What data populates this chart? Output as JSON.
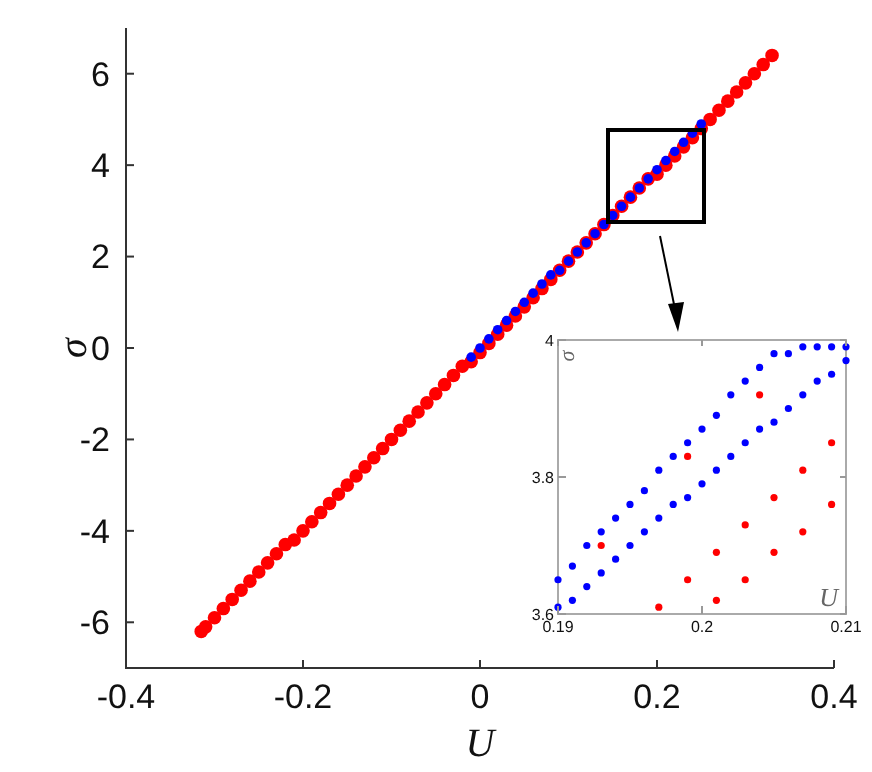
{
  "chart_data": [
    {
      "type": "scatter",
      "xlabel": "U",
      "ylabel": "σ",
      "xlim": [
        -0.4,
        0.4
      ],
      "ylim": [
        -7,
        7
      ],
      "xticks": [
        -0.4,
        -0.2,
        0,
        0.2,
        0.4
      ],
      "yticks": [
        -6,
        -4,
        -2,
        0,
        2,
        4,
        6
      ],
      "marker": "circle",
      "series": [
        {
          "color": "#ff0000",
          "x": [
            -0.315,
            -0.31,
            -0.3,
            -0.29,
            -0.28,
            -0.27,
            -0.26,
            -0.25,
            -0.24,
            -0.23,
            -0.22,
            -0.21,
            -0.2,
            -0.19,
            -0.18,
            -0.17,
            -0.16,
            -0.15,
            -0.14,
            -0.13,
            -0.12,
            -0.11,
            -0.1,
            -0.09,
            -0.08,
            -0.07,
            -0.06,
            -0.05,
            -0.04,
            -0.03,
            -0.02,
            -0.01,
            0,
            0.01,
            0.02,
            0.03,
            0.04,
            0.05,
            0.06,
            0.07,
            0.08,
            0.09,
            0.1,
            0.11,
            0.12,
            0.13,
            0.14,
            0.15,
            0.16,
            0.17,
            0.18,
            0.19,
            0.2,
            0.21,
            0.22,
            0.23,
            0.24,
            0.25,
            0.26,
            0.27,
            0.28,
            0.29,
            0.3,
            0.31,
            0.32,
            0.33
          ],
          "values": [
            -6.2,
            -6.1,
            -5.9,
            -5.7,
            -5.5,
            -5.3,
            -5.1,
            -4.9,
            -4.7,
            -4.5,
            -4.3,
            -4.2,
            -4.0,
            -3.8,
            -3.6,
            -3.4,
            -3.2,
            -3.0,
            -2.8,
            -2.6,
            -2.4,
            -2.2,
            -2.0,
            -1.8,
            -1.6,
            -1.4,
            -1.2,
            -1.0,
            -0.8,
            -0.6,
            -0.4,
            -0.3,
            -0.1,
            0.1,
            0.3,
            0.5,
            0.7,
            0.9,
            1.1,
            1.3,
            1.5,
            1.7,
            1.9,
            2.1,
            2.3,
            2.5,
            2.7,
            2.9,
            3.1,
            3.3,
            3.5,
            3.7,
            3.8,
            4.0,
            4.2,
            4.4,
            4.6,
            4.8,
            5.0,
            5.2,
            5.4,
            5.6,
            5.8,
            6.0,
            6.2,
            6.4
          ]
        },
        {
          "color": "#0000ff",
          "x": [
            -0.01,
            0,
            0.01,
            0.02,
            0.03,
            0.04,
            0.05,
            0.06,
            0.07,
            0.08,
            0.09,
            0.1,
            0.11,
            0.12,
            0.13,
            0.14,
            0.15,
            0.16,
            0.17,
            0.18,
            0.19,
            0.2,
            0.21,
            0.22,
            0.23,
            0.24,
            0.25
          ],
          "values": [
            -0.2,
            0,
            0.2,
            0.4,
            0.6,
            0.8,
            1.0,
            1.2,
            1.4,
            1.6,
            1.7,
            1.9,
            2.1,
            2.3,
            2.5,
            2.7,
            2.9,
            3.1,
            3.3,
            3.5,
            3.7,
            3.9,
            4.1,
            4.3,
            4.5,
            4.7,
            4.9
          ]
        }
      ]
    },
    {
      "type": "scatter",
      "xlabel": "U",
      "ylabel": "σ",
      "xlim": [
        0.19,
        0.21
      ],
      "ylim": [
        3.6,
        4
      ],
      "xticks": [
        0.19,
        0.2,
        0.21
      ],
      "yticks": [
        3.6,
        3.8,
        4
      ],
      "marker": "circle",
      "series": [
        {
          "color": "#ff0000",
          "x": [
            0.197,
            0.199,
            0.201,
            0.203,
            0.205,
            0.207,
            0.209,
            0.201,
            0.203,
            0.205,
            0.207,
            0.209,
            0.193,
            0.199,
            0.204
          ],
          "values": [
            3.61,
            3.65,
            3.69,
            3.73,
            3.77,
            3.81,
            3.85,
            3.62,
            3.65,
            3.69,
            3.72,
            3.76,
            3.7,
            3.83,
            3.92
          ]
        },
        {
          "color": "#0000ff",
          "x": [
            0.19,
            0.19,
            0.191,
            0.191,
            0.192,
            0.192,
            0.193,
            0.193,
            0.194,
            0.194,
            0.195,
            0.195,
            0.196,
            0.196,
            0.197,
            0.197,
            0.198,
            0.198,
            0.199,
            0.199,
            0.2,
            0.2,
            0.201,
            0.201,
            0.202,
            0.202,
            0.203,
            0.203,
            0.204,
            0.204,
            0.205,
            0.205,
            0.206,
            0.206,
            0.207,
            0.207,
            0.208,
            0.208,
            0.209,
            0.209,
            0.21,
            0.21
          ],
          "values": [
            3.61,
            3.65,
            3.62,
            3.67,
            3.64,
            3.7,
            3.66,
            3.72,
            3.68,
            3.74,
            3.7,
            3.76,
            3.72,
            3.78,
            3.74,
            3.81,
            3.76,
            3.83,
            3.77,
            3.85,
            3.79,
            3.87,
            3.81,
            3.89,
            3.83,
            3.92,
            3.85,
            3.94,
            3.87,
            3.96,
            3.88,
            3.98,
            3.9,
            3.98,
            3.92,
            3.99,
            3.94,
            3.99,
            3.95,
            3.99,
            3.97,
            3.99
          ]
        }
      ]
    }
  ]
}
